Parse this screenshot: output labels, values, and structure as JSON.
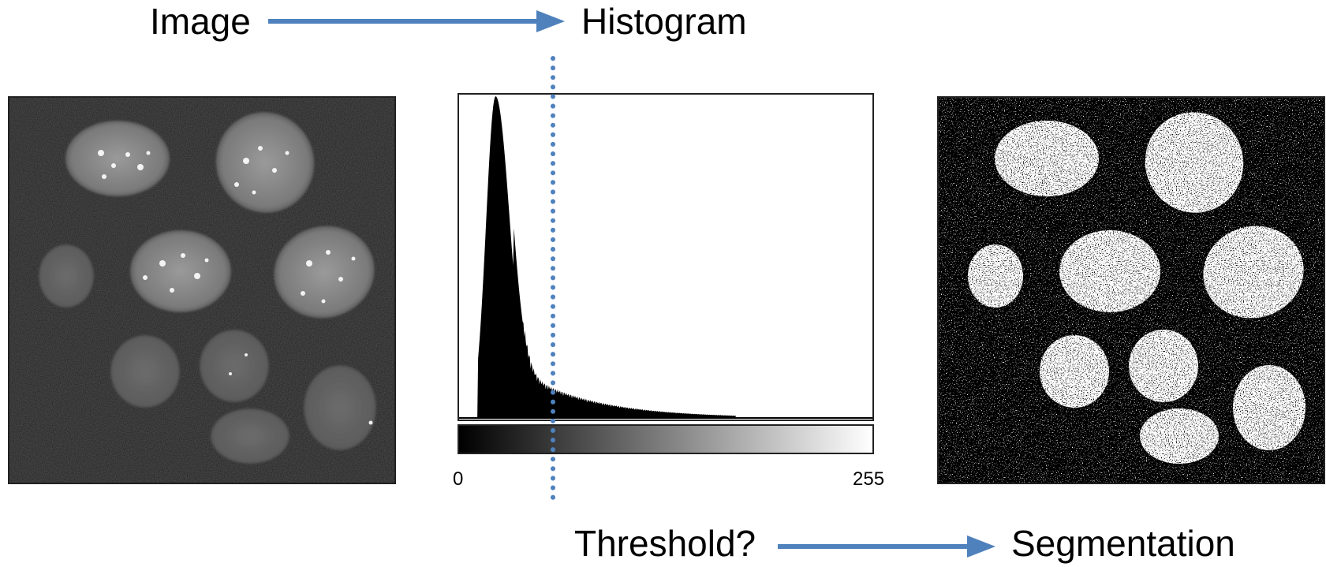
{
  "labels": {
    "image": "Image",
    "histogram": "Histogram",
    "threshold": "Threshold?",
    "segmentation": "Segmentation"
  },
  "axis": {
    "min_label": "0",
    "max_label": "255"
  },
  "colors": {
    "arrow": "#4F81BD",
    "threshold_line": "#4F81BD",
    "micrograph_bg": "#1c1c1c",
    "segmentation_bg": "#000000"
  },
  "histogram": {
    "gray_max": 255,
    "threshold_value": 58,
    "peak_value": 19
  }
}
